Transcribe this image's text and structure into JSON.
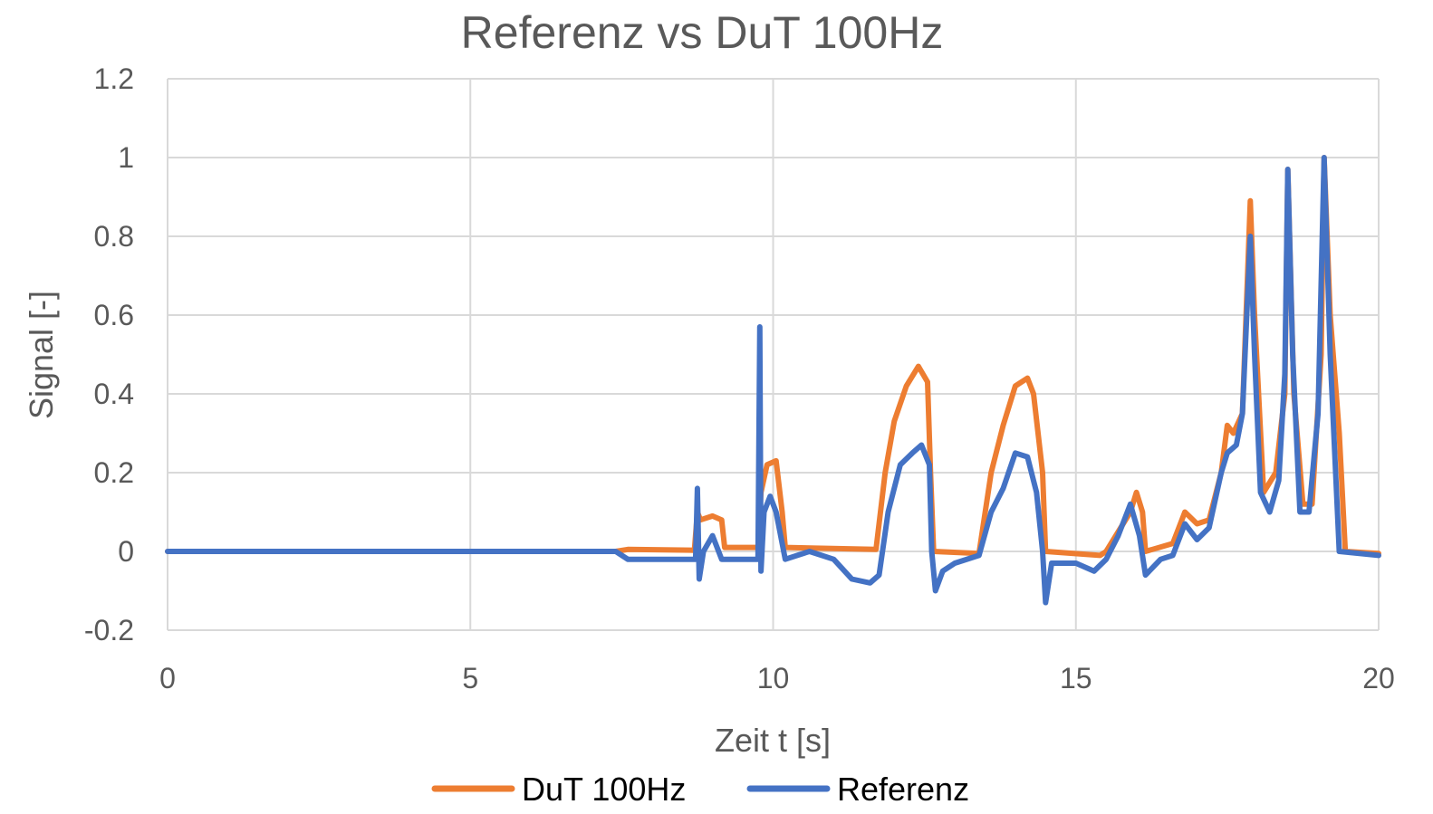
{
  "chart_data": {
    "type": "line",
    "title": "Referenz vs DuT 100Hz",
    "xlabel": "Zeit t [s]",
    "ylabel": "Signal [-]",
    "xlim": [
      0,
      20
    ],
    "ylim": [
      -0.2,
      1.2
    ],
    "x_ticks": [
      "0",
      "5",
      "10",
      "15",
      "20"
    ],
    "y_ticks": [
      "-0.2",
      "0",
      "0.2",
      "0.4",
      "0.6",
      "0.8",
      "1",
      "1.2"
    ],
    "grid": true,
    "legend_position": "bottom",
    "series": [
      {
        "name": "DuT 100Hz",
        "color": "#ED7D31",
        "points": [
          [
            0,
            0
          ],
          [
            7.4,
            0
          ],
          [
            7.6,
            0.005
          ],
          [
            8.7,
            0.003
          ],
          [
            8.75,
            0.1
          ],
          [
            8.8,
            0.08
          ],
          [
            9.0,
            0.09
          ],
          [
            9.15,
            0.08
          ],
          [
            9.2,
            0.01
          ],
          [
            9.75,
            0.01
          ],
          [
            9.8,
            0.15
          ],
          [
            9.9,
            0.22
          ],
          [
            10.05,
            0.23
          ],
          [
            10.15,
            0.1
          ],
          [
            10.2,
            0.01
          ],
          [
            11.7,
            0.005
          ],
          [
            11.85,
            0.2
          ],
          [
            12.0,
            0.33
          ],
          [
            12.2,
            0.42
          ],
          [
            12.4,
            0.47
          ],
          [
            12.55,
            0.43
          ],
          [
            12.6,
            0.2
          ],
          [
            12.65,
            0.0
          ],
          [
            13.4,
            -0.005
          ],
          [
            13.6,
            0.2
          ],
          [
            13.8,
            0.32
          ],
          [
            14.0,
            0.42
          ],
          [
            14.2,
            0.44
          ],
          [
            14.3,
            0.4
          ],
          [
            14.45,
            0.2
          ],
          [
            14.5,
            0.0
          ],
          [
            15.4,
            -0.01
          ],
          [
            15.5,
            0.0
          ],
          [
            15.9,
            0.1
          ],
          [
            16.0,
            0.15
          ],
          [
            16.1,
            0.1
          ],
          [
            16.15,
            0.0
          ],
          [
            16.6,
            0.02
          ],
          [
            16.8,
            0.1
          ],
          [
            17.0,
            0.07
          ],
          [
            17.2,
            0.08
          ],
          [
            17.4,
            0.2
          ],
          [
            17.5,
            0.32
          ],
          [
            17.6,
            0.3
          ],
          [
            17.75,
            0.35
          ],
          [
            17.88,
            0.89
          ],
          [
            17.95,
            0.6
          ],
          [
            18.1,
            0.15
          ],
          [
            18.3,
            0.2
          ],
          [
            18.45,
            0.4
          ],
          [
            18.5,
            0.97
          ],
          [
            18.6,
            0.4
          ],
          [
            18.75,
            0.12
          ],
          [
            18.9,
            0.12
          ],
          [
            19.05,
            0.5
          ],
          [
            19.1,
            1.0
          ],
          [
            19.2,
            0.6
          ],
          [
            19.35,
            0.3
          ],
          [
            19.45,
            0.0
          ],
          [
            20,
            -0.005
          ]
        ]
      },
      {
        "name": "Referenz",
        "color": "#4472C4",
        "points": [
          [
            0,
            0
          ],
          [
            7.4,
            0
          ],
          [
            7.6,
            -0.02
          ],
          [
            8.0,
            -0.02
          ],
          [
            8.72,
            -0.02
          ],
          [
            8.75,
            0.16
          ],
          [
            8.78,
            -0.07
          ],
          [
            8.85,
            0.0
          ],
          [
            9.0,
            0.04
          ],
          [
            9.15,
            -0.02
          ],
          [
            9.4,
            -0.02
          ],
          [
            9.75,
            -0.02
          ],
          [
            9.78,
            0.57
          ],
          [
            9.8,
            -0.05
          ],
          [
            9.85,
            0.1
          ],
          [
            9.95,
            0.14
          ],
          [
            10.05,
            0.1
          ],
          [
            10.2,
            -0.02
          ],
          [
            10.6,
            0.0
          ],
          [
            11.0,
            -0.02
          ],
          [
            11.3,
            -0.07
          ],
          [
            11.6,
            -0.08
          ],
          [
            11.75,
            -0.06
          ],
          [
            11.9,
            0.1
          ],
          [
            12.1,
            0.22
          ],
          [
            12.3,
            0.25
          ],
          [
            12.45,
            0.27
          ],
          [
            12.58,
            0.22
          ],
          [
            12.62,
            0.0
          ],
          [
            12.68,
            -0.1
          ],
          [
            12.8,
            -0.05
          ],
          [
            13.0,
            -0.03
          ],
          [
            13.4,
            -0.01
          ],
          [
            13.6,
            0.1
          ],
          [
            13.8,
            0.16
          ],
          [
            14.0,
            0.25
          ],
          [
            14.2,
            0.24
          ],
          [
            14.35,
            0.15
          ],
          [
            14.45,
            0.0
          ],
          [
            14.5,
            -0.13
          ],
          [
            14.6,
            -0.03
          ],
          [
            15.0,
            -0.03
          ],
          [
            15.3,
            -0.05
          ],
          [
            15.5,
            -0.02
          ],
          [
            15.7,
            0.04
          ],
          [
            15.9,
            0.12
          ],
          [
            16.05,
            0.04
          ],
          [
            16.15,
            -0.06
          ],
          [
            16.4,
            -0.02
          ],
          [
            16.6,
            -0.01
          ],
          [
            16.8,
            0.07
          ],
          [
            17.0,
            0.03
          ],
          [
            17.2,
            0.06
          ],
          [
            17.4,
            0.2
          ],
          [
            17.5,
            0.25
          ],
          [
            17.65,
            0.27
          ],
          [
            17.75,
            0.35
          ],
          [
            17.88,
            0.8
          ],
          [
            17.95,
            0.5
          ],
          [
            18.05,
            0.15
          ],
          [
            18.2,
            0.1
          ],
          [
            18.35,
            0.18
          ],
          [
            18.45,
            0.45
          ],
          [
            18.5,
            0.97
          ],
          [
            18.58,
            0.5
          ],
          [
            18.7,
            0.1
          ],
          [
            18.85,
            0.1
          ],
          [
            19.0,
            0.35
          ],
          [
            19.1,
            1.0
          ],
          [
            19.2,
            0.5
          ],
          [
            19.35,
            0.0
          ],
          [
            20,
            -0.01
          ]
        ]
      }
    ]
  }
}
